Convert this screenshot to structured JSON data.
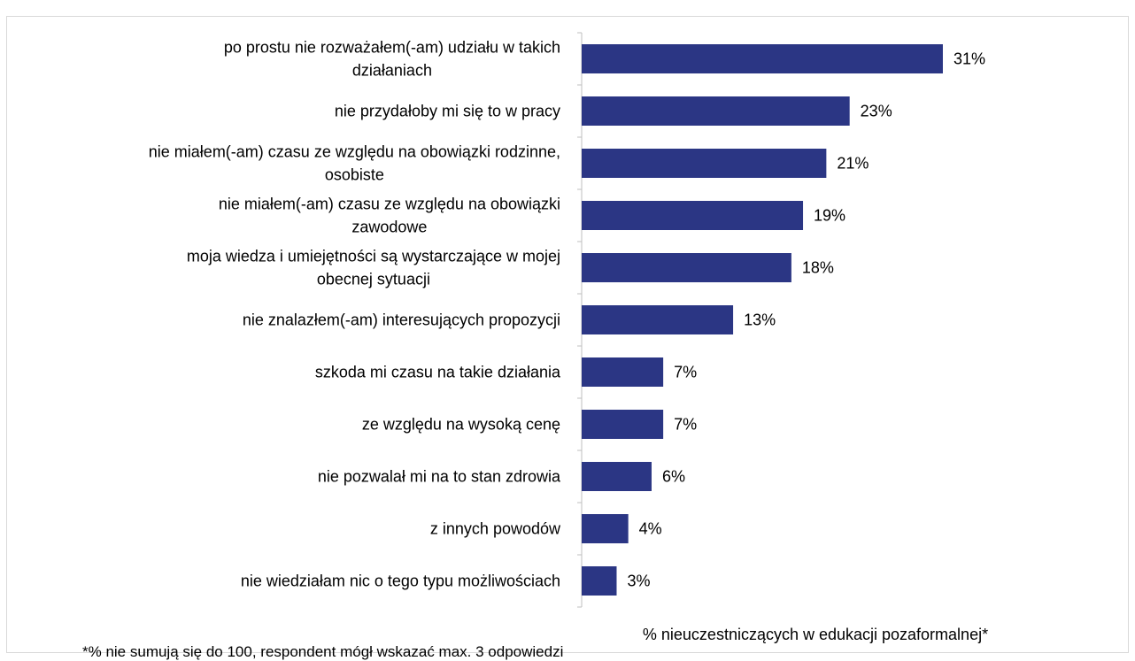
{
  "chart_data": {
    "type": "bar",
    "orientation": "horizontal",
    "categories": [
      [
        "po prostu nie rozważałem(-am) udziału w takich",
        "działaniach"
      ],
      [
        "nie przydałoby mi się to w pracy"
      ],
      [
        "nie miałem(-am) czasu ze względu na obowiązki rodzinne,",
        "osobiste"
      ],
      [
        "nie miałem(-am) czasu ze względu na obowiązki",
        "zawodowe"
      ],
      [
        "moja wiedza i umiejętności są wystarczające w mojej",
        "obecnej sytuacji"
      ],
      [
        "nie znalazłem(-am) interesujących propozycji"
      ],
      [
        "szkoda mi czasu na takie działania"
      ],
      [
        "ze względu na wysoką cenę"
      ],
      [
        "nie pozwalał mi na to stan zdrowia"
      ],
      [
        "z innych powodów"
      ],
      [
        "nie wiedziałam nic o tego typu możliwościach"
      ]
    ],
    "values": [
      31,
      23,
      21,
      19,
      18,
      13,
      7,
      7,
      6,
      4,
      3
    ],
    "value_labels": [
      "31%",
      "23%",
      "21%",
      "19%",
      "18%",
      "13%",
      "7%",
      "7%",
      "6%",
      "4%",
      "3%"
    ],
    "xlabel": "% nieuczestniczących w edukacji pozaformalnej*",
    "xlim": [
      0,
      32
    ],
    "bar_color": "#2B3684",
    "grid": false,
    "legend": "none"
  },
  "footnote": "*% nie sumują się do 100, respondent mógł wskazać max. 3 odpowiedzi"
}
